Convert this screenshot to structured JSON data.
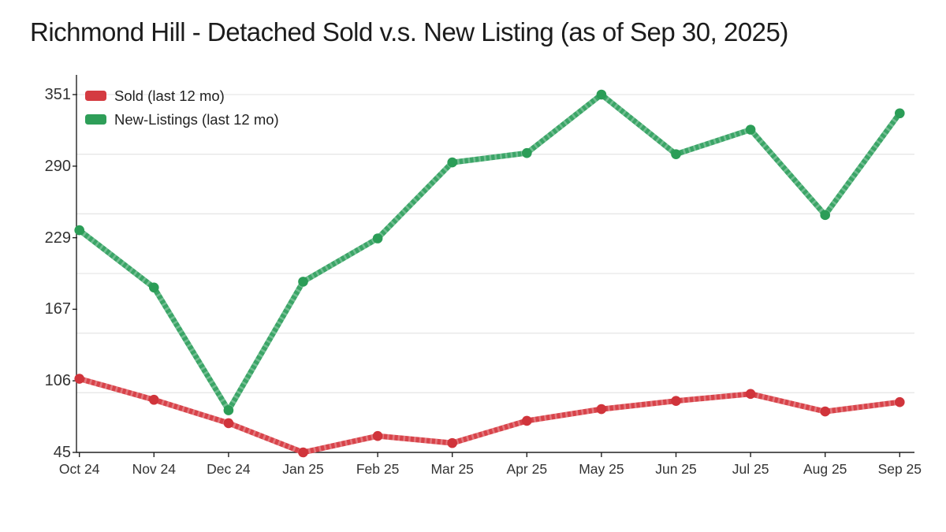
{
  "title": "Richmond Hill - Detached Sold v.s. New Listing (as of Sep 30, 2025)",
  "legend": {
    "items": [
      {
        "label": "Sold (last 12 mo)",
        "color": "#d43b41"
      },
      {
        "label": "New-Listings (last 12 mo)",
        "color": "#2e9e58"
      }
    ]
  },
  "colors": {
    "axis": "#222222",
    "gridline": "#e7e7e7",
    "tick_text": "#333333",
    "title_text": "#1c1c1c",
    "sold_line": "#d8434a",
    "sold_marker": "#d0343b",
    "new_line": "#3ba567",
    "new_marker": "#2b9d57"
  },
  "chart_data": {
    "type": "line",
    "title": "Richmond Hill - Detached Sold v.s. New Listing (as of Sep 30, 2025)",
    "categories": [
      "Oct 24",
      "Nov 24",
      "Dec 24",
      "Jan 25",
      "Feb 25",
      "Mar 25",
      "Apr 25",
      "May 25",
      "Jun 25",
      "Jul 25",
      "Aug 25",
      "Sep 25"
    ],
    "series": [
      {
        "name": "Sold (last 12 mo)",
        "values": [
          108,
          90,
          70,
          45,
          59,
          53,
          72,
          82,
          89,
          95,
          80,
          88
        ]
      },
      {
        "name": "New-Listings (last 12 mo)",
        "values": [
          235,
          186,
          81,
          191,
          228,
          293,
          301,
          351,
          300,
          321,
          248,
          335
        ]
      }
    ],
    "xlabel": "",
    "ylabel": "",
    "ylim": [
      45,
      351
    ],
    "ytick_values": [
      45,
      106.2,
      167.4,
      228.6,
      289.8,
      351
    ],
    "ytick_labels": [
      "45",
      "106",
      "167",
      "229",
      "290",
      "351"
    ],
    "gridline_values": [
      96,
      147,
      198,
      249,
      300,
      351
    ],
    "grid": "horizontal only",
    "legend_position": "top-left inside plot",
    "marker": "circle"
  }
}
